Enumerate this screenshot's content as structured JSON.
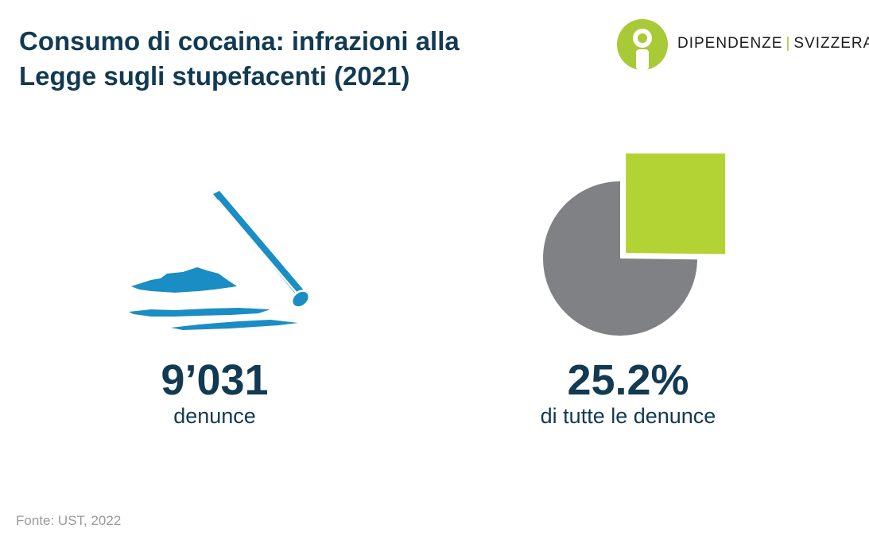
{
  "title_lines": [
    "Consumo di cocaina: infrazioni alla",
    "Legge sugli stupefacenti (2021)"
  ],
  "logo": {
    "left": "DIPENDENZE",
    "separator": "|",
    "right": "SVIZZERA",
    "icon": "person-info-icon"
  },
  "stat_left": {
    "value": "9’031",
    "label": "denunce",
    "icon": "cocaine-straw-icon"
  },
  "stat_right": {
    "value": "25.2%",
    "label": "di tutte le denunce"
  },
  "source": "Fonte: UST, 2022",
  "colors": {
    "navy": "#123a52",
    "green": "#b3d334",
    "gray": "#808184",
    "blue": "#1a8dc4"
  },
  "chart_data": {
    "type": "pie",
    "categories": [
      "",
      ""
    ],
    "values": [
      25.2,
      74.8
    ],
    "highlighted_index": 0,
    "colors": [
      "#b3d334",
      "#808184"
    ]
  }
}
